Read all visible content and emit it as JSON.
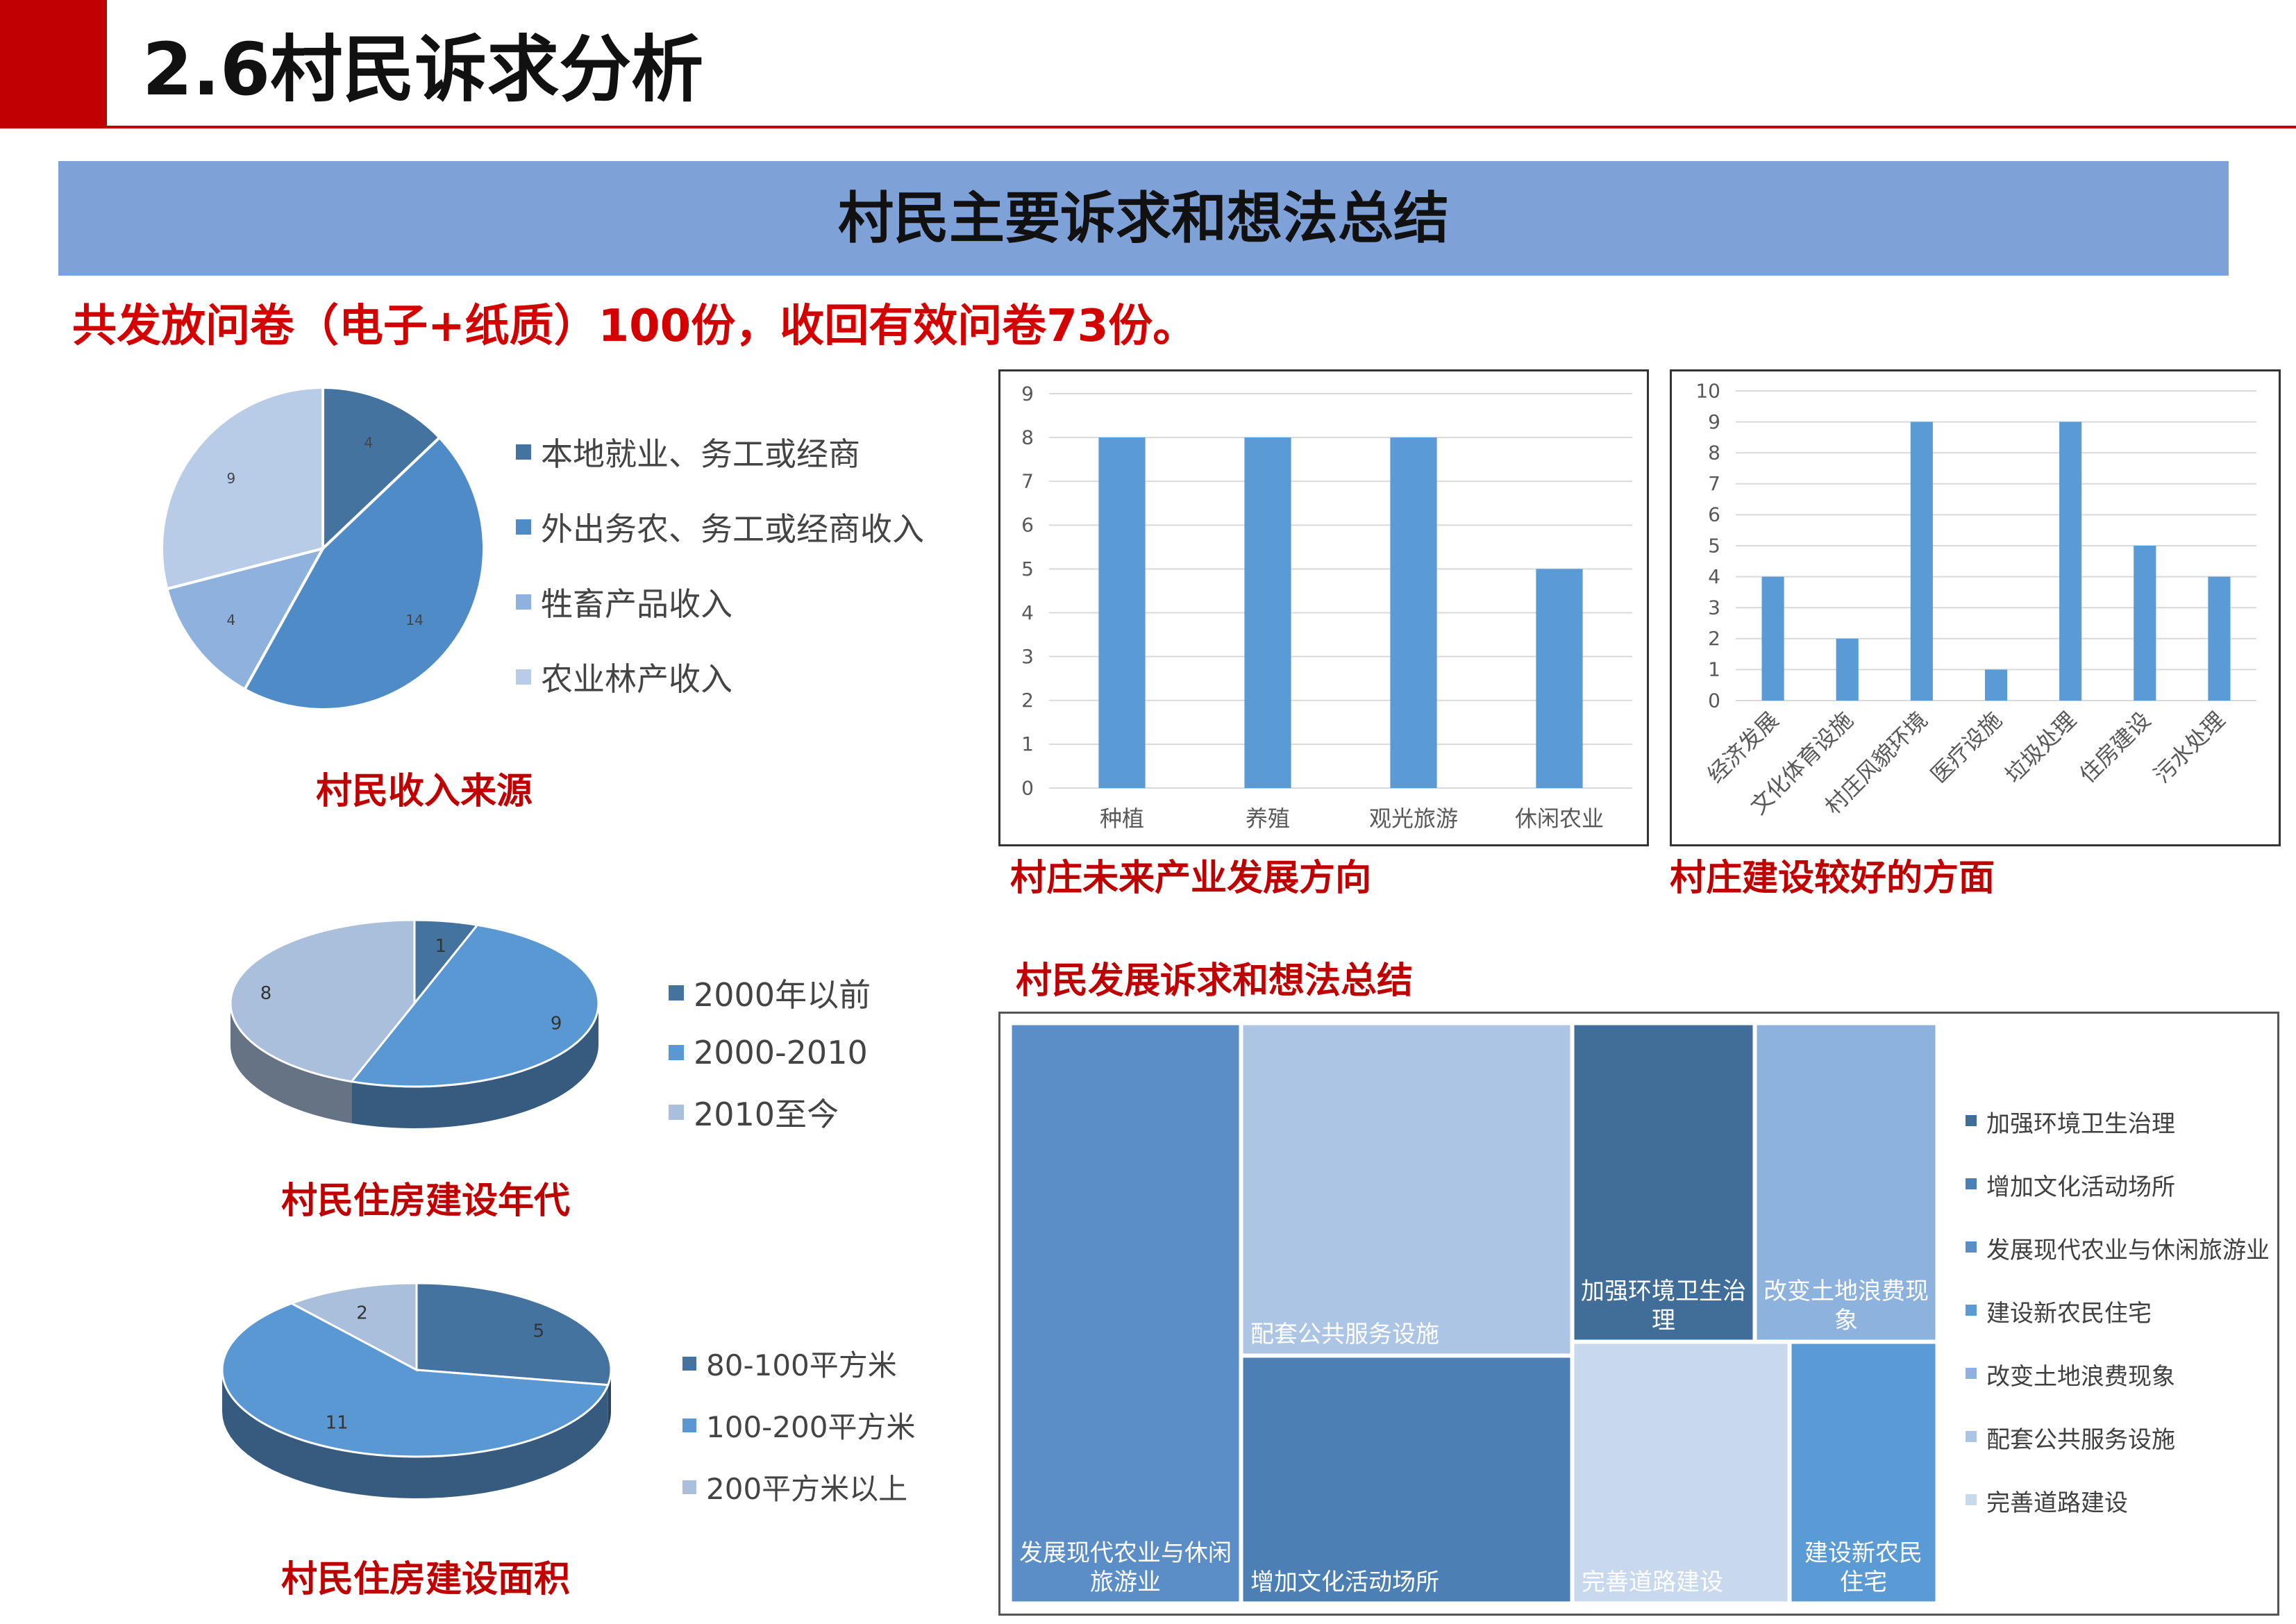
{
  "header": {
    "title": "2.6村民诉求分析"
  },
  "banner": {
    "title": "村民主要诉求和想法总结"
  },
  "survey_note": "共发放问卷（电子+纸质）100份，收回有效问卷73份。",
  "colors": {
    "red": "#c00000",
    "banner": "#7ea1d8",
    "bar": "#5b9bd5",
    "pie_dark": "#44739f",
    "pie_mid": "#4f8bc6",
    "pie_light": "#8eb2dd",
    "pie_lightest": "#b8cce7"
  },
  "chart_data": [
    {
      "type": "pie",
      "caption": "村民收入来源",
      "labels": [
        "本地就业、务工或经商",
        "外出务农、务工或经商收入",
        "牲畜产品收入",
        "农业林产收入"
      ],
      "values": [
        4,
        14,
        4,
        9
      ],
      "data_labels": [
        "4",
        "14",
        "4",
        "9"
      ],
      "colors": [
        "#44739f",
        "#4f8bc6",
        "#8eb2dd",
        "#b8cce7"
      ],
      "legend_position": "right"
    },
    {
      "type": "pie",
      "caption": "村民住房建设年代",
      "labels": [
        "2000年以前",
        "2000-2010",
        "2010至今"
      ],
      "values": [
        1,
        9,
        8
      ],
      "data_labels": [
        "1",
        "9",
        "8"
      ],
      "colors": [
        "#44739f",
        "#5a98d4",
        "#a9bfdc"
      ],
      "legend_position": "right",
      "style": "3d"
    },
    {
      "type": "pie",
      "caption": "村民住房建设面积",
      "labels": [
        "80-100平方米",
        "100-200平方米",
        "200平方米以上"
      ],
      "values": [
        5,
        11,
        2
      ],
      "data_labels": [
        "5",
        "11",
        "2"
      ],
      "colors": [
        "#44739f",
        "#5a98d4",
        "#a9bfdc"
      ],
      "legend_position": "right",
      "style": "3d"
    },
    {
      "type": "bar",
      "caption": "村庄未来产业发展方向",
      "categories": [
        "种植",
        "养殖",
        "观光旅游",
        "休闲农业"
      ],
      "values": [
        8,
        8,
        8,
        5
      ],
      "ylim": [
        0,
        9
      ],
      "yticks": [
        "0",
        "1",
        "2",
        "3",
        "4",
        "5",
        "6",
        "7",
        "8",
        "9"
      ],
      "grid": true
    },
    {
      "type": "bar",
      "caption": "村庄建设较好的方面",
      "categories": [
        "经济发展",
        "文化体育设施",
        "村庄风貌环境",
        "医疗设施",
        "垃圾处理",
        "住房建设",
        "污水处理"
      ],
      "values": [
        4,
        2,
        9,
        1,
        9,
        5,
        4
      ],
      "ylim": [
        0,
        10
      ],
      "yticks": [
        "0",
        "1",
        "2",
        "3",
        "4",
        "5",
        "6",
        "7",
        "8",
        "9",
        "10"
      ],
      "grid": true
    },
    {
      "type": "treemap",
      "caption": "村民发展诉求和想法总结",
      "tiles": [
        {
          "label": "发展现代农业与休闲旅游业",
          "lines": [
            "发展现代农业与休闲",
            "旅游业"
          ],
          "color": "#5b8ec6",
          "text_color": "#ffffff"
        },
        {
          "label": "配套公共服务设施",
          "lines": [
            "配套公共服务设施"
          ],
          "color": "#adc5e5",
          "text_color": "#ffffff"
        },
        {
          "label": "增加文化活动场所",
          "lines": [
            "增加文化活动场所"
          ],
          "color": "#4c7fb4",
          "text_color": "#ffffff"
        },
        {
          "label": "加强环境卫生治理",
          "lines": [
            "加强环境卫生治",
            "理"
          ],
          "color": "#416e99",
          "text_color": "#ffffff"
        },
        {
          "label": "改变土地浪费现象",
          "lines": [
            "改变土地浪费现",
            "象"
          ],
          "color": "#8db2de",
          "text_color": "#ffffff"
        },
        {
          "label": "完善道路建设",
          "lines": [
            "完善道路建设"
          ],
          "color": "#c8d8ed",
          "text_color": "#ffffff"
        },
        {
          "label": "建设新农民住宅",
          "lines": [
            "建设新农民",
            "住宅"
          ],
          "color": "#5b9bd5",
          "text_color": "#ffffff"
        }
      ],
      "legend": [
        {
          "label": "加强环境卫生治理",
          "color": "#416e99"
        },
        {
          "label": "增加文化活动场所",
          "color": "#4c7fb4"
        },
        {
          "label": "发展现代农业与休闲旅游业",
          "color": "#5b8ec6"
        },
        {
          "label": "建设新农民住宅",
          "color": "#5b9bd5"
        },
        {
          "label": "改变土地浪费现象",
          "color": "#8db2de"
        },
        {
          "label": "配套公共服务设施",
          "color": "#adc5e5"
        },
        {
          "label": "完善道路建设",
          "color": "#c8d8ed"
        }
      ],
      "legend_position": "right"
    }
  ]
}
